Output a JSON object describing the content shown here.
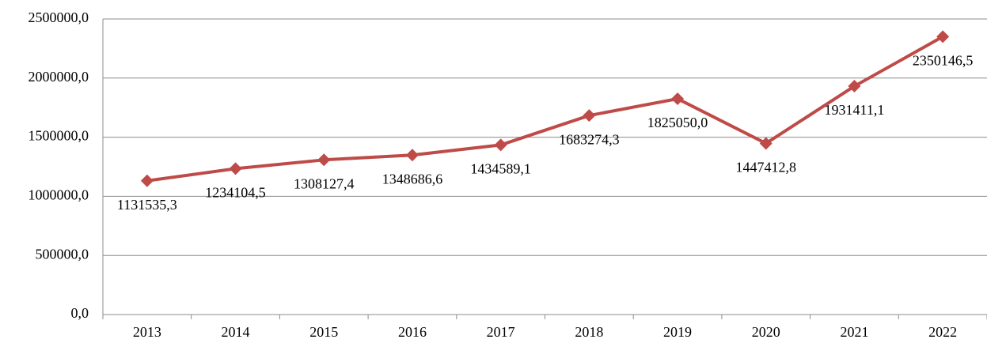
{
  "chart_data": {
    "type": "line",
    "categories": [
      "2013",
      "2014",
      "2015",
      "2016",
      "2017",
      "2018",
      "2019",
      "2020",
      "2021",
      "2022"
    ],
    "series": [
      {
        "color": "#be4b48",
        "values": [
          1131535.3,
          1234104.5,
          1308127.4,
          1348686.6,
          1434589.1,
          1683274.3,
          1825050.0,
          1447412.8,
          1931411.1,
          2350146.5
        ],
        "value_labels": [
          "1131535,3",
          "1234104,5",
          "1308127,4",
          "1348686,6",
          "1434589,1",
          "1683274,3",
          "1825050,0",
          "1447412,8",
          "1931411,1",
          "2350146,5"
        ]
      }
    ],
    "ylim": [
      0,
      2500000
    ],
    "yticks": [
      {
        "value": 0,
        "label": "0,0"
      },
      {
        "value": 500000,
        "label": "500000,0"
      },
      {
        "value": 1000000,
        "label": "1000000,0"
      },
      {
        "value": 1500000,
        "label": "1500000,0"
      },
      {
        "value": 2000000,
        "label": "2000000,0"
      },
      {
        "value": 2500000,
        "label": "2500000,0"
      }
    ],
    "grid": true
  }
}
